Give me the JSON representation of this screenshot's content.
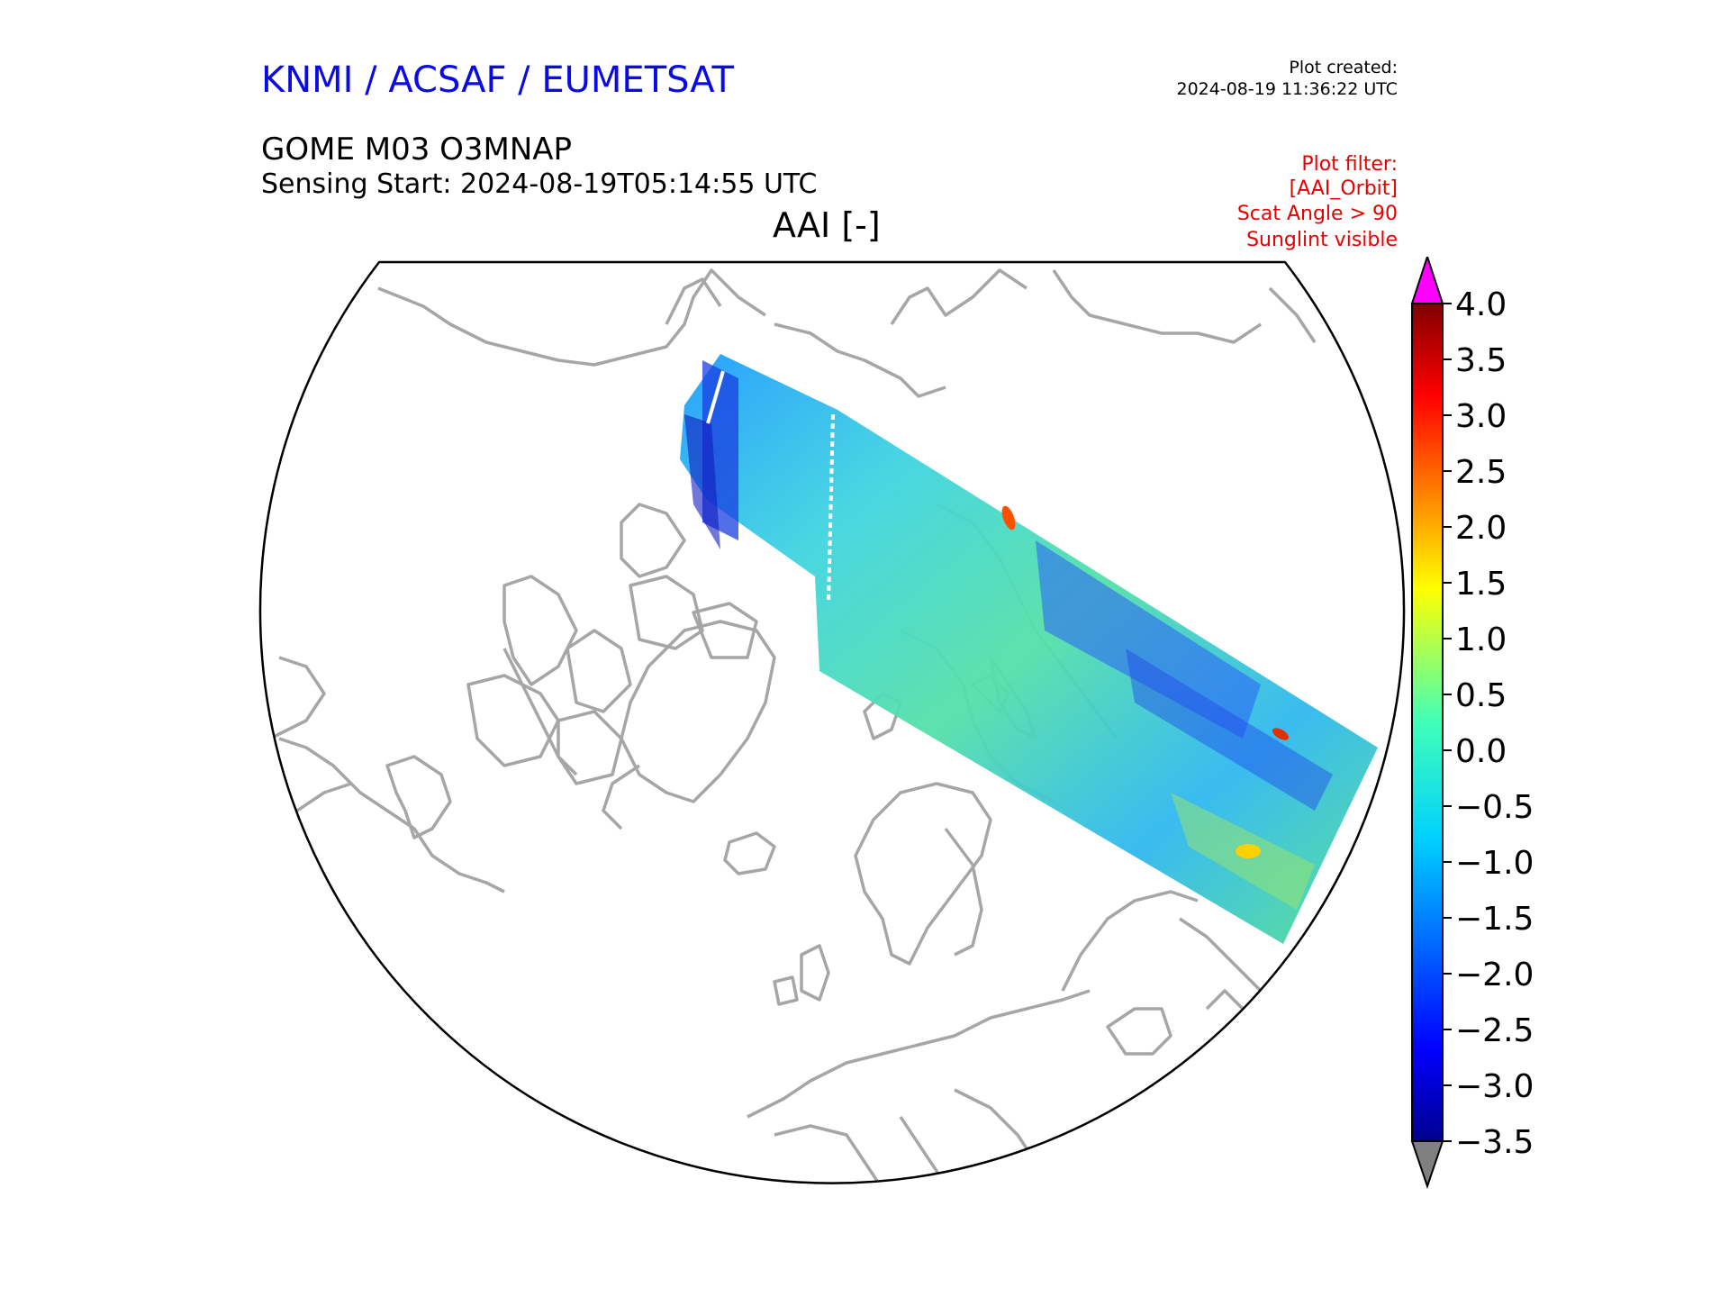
{
  "header": {
    "org_title": "KNMI / ACSAF / EUMETSAT",
    "plot_created_label": "Plot created:",
    "plot_created_time": "2024-08-19 11:36:22 UTC",
    "product_title": "GOME M03 O3MNAP",
    "sensing_start": "Sensing Start: 2024-08-19T05:14:55 UTC",
    "variable_title": "AAI [-]"
  },
  "plot_filter": {
    "label": "Plot filter:",
    "items": [
      "[AAI_Orbit]",
      "Scat Angle > 90",
      "Sunglint visible"
    ]
  },
  "colorbar": {
    "tick_labels": [
      "4.0",
      "3.5",
      "3.0",
      "2.5",
      "2.0",
      "1.5",
      "1.0",
      "0.5",
      "0.0",
      "−0.5",
      "−1.0",
      "−1.5",
      "−2.0",
      "−2.5",
      "−3.0",
      "−3.5"
    ],
    "min": -3.5,
    "max": 4.0,
    "extend_max_color": "#ff00ff",
    "extend_min_color": "#808080",
    "colormap": "jet"
  },
  "map": {
    "projection": "north-polar-stereographic",
    "coastline_color": "#a6a6a6",
    "boundary_color": "#000000"
  }
}
